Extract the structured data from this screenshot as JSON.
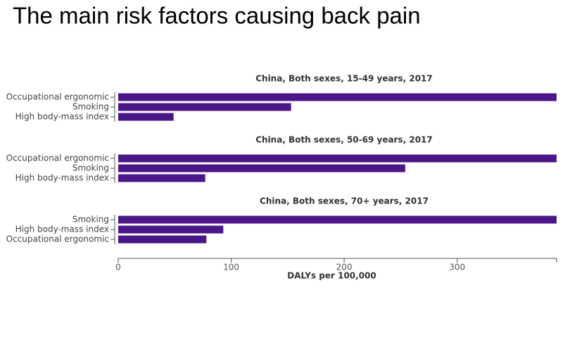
{
  "title": "The main risk factors causing back pain",
  "chart_data": [
    {
      "type": "bar",
      "orientation": "horizontal",
      "title": "China, Both sexes, 15-49 years, 2017",
      "categories": [
        "Occupational ergonomic",
        "Smoking",
        "High body-mass index"
      ],
      "values": [
        388,
        153,
        49
      ],
      "color": "#4b1687",
      "xlim": [
        0,
        388
      ]
    },
    {
      "type": "bar",
      "orientation": "horizontal",
      "title": "China, Both sexes, 50-69 years, 2017",
      "categories": [
        "Occupational ergonomic",
        "Smoking",
        "High body-mass index"
      ],
      "values": [
        388,
        254,
        77
      ],
      "color": "#4b1687",
      "xlim": [
        0,
        388
      ]
    },
    {
      "type": "bar",
      "orientation": "horizontal",
      "title": "China, Both sexes, 70+ years, 2017",
      "categories": [
        "Smoking",
        "High body-mass index",
        "Occupational ergonomic"
      ],
      "values": [
        388,
        93,
        78
      ],
      "color": "#4b1687",
      "xlim": [
        0,
        388
      ],
      "xticks": [
        0,
        100,
        200,
        300
      ],
      "xlabel": "DALYs per 100,000"
    }
  ]
}
